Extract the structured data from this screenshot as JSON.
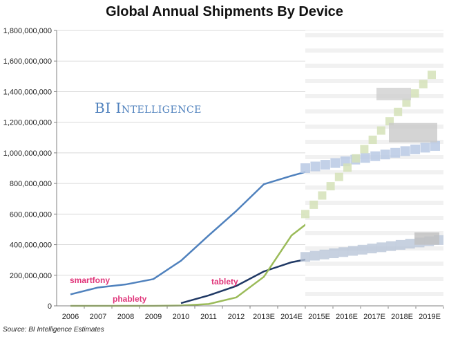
{
  "chart_data": {
    "type": "line",
    "title": "Global Annual Shipments By Device",
    "xlabel": "",
    "ylabel": "",
    "categories": [
      "2006",
      "2007",
      "2008",
      "2009",
      "2010",
      "2011",
      "2012",
      "2013E",
      "2014E",
      "2015E",
      "2016E",
      "2017E",
      "2018E",
      "2019E"
    ],
    "ylim": [
      0,
      1800000000
    ],
    "yticks": [
      0,
      200000000,
      400000000,
      600000000,
      800000000,
      1000000000,
      1200000000,
      1400000000,
      1600000000,
      1800000000
    ],
    "ytick_labels": [
      "0",
      "200,000,000",
      "400,000,000",
      "600,000,000",
      "800,000,000",
      "1,000,000,000",
      "1,200,000,000",
      "1,400,000,000",
      "1,600,000,000",
      "1,800,000,000"
    ],
    "grid": true,
    "series": [
      {
        "name": "smartfony",
        "color": "#4f81bd",
        "values": [
          75000000,
          120000000,
          140000000,
          175000000,
          295000000,
          460000000,
          620000000,
          795000000,
          850000000,
          900000000,
          null,
          null,
          null,
          null
        ]
      },
      {
        "name": "tablety",
        "color": "#1f3864",
        "values": [
          null,
          null,
          null,
          null,
          18000000,
          68000000,
          130000000,
          225000000,
          285000000,
          320000000,
          null,
          null,
          null,
          null
        ]
      },
      {
        "name": "phablety",
        "color": "#9bbb59",
        "values": [
          0,
          0,
          0,
          0,
          2000000,
          12000000,
          55000000,
          190000000,
          460000000,
          600000000,
          null,
          null,
          null,
          null
        ]
      }
    ],
    "obscured_region": "2015E-2019E values are pixelated/blurred in the original image"
  },
  "labels": {
    "smartfony": "smartfony",
    "phablety": "phablety",
    "tablety": "tablety",
    "label_color": "#e0357a"
  },
  "watermark": {
    "first": "BI",
    "rest": "Intelligence",
    "color": "#4f81bd"
  },
  "source": "Source: BI Intelligence Estimates"
}
